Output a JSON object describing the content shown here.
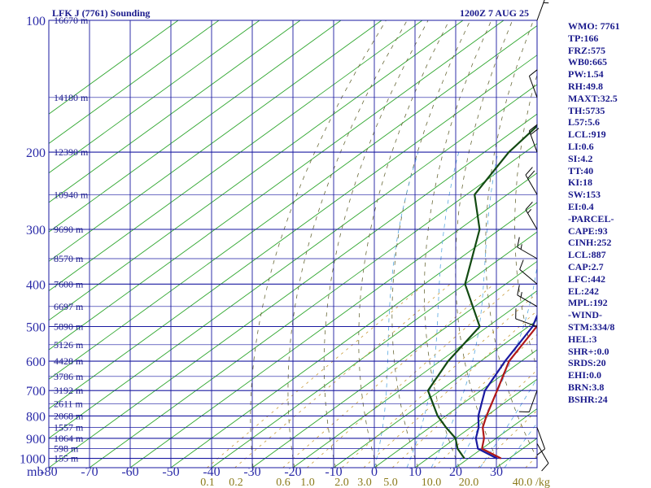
{
  "header": {
    "station": "LFK J (7761) Sounding",
    "time": "1200Z  7 AUG 25"
  },
  "chart_data": {
    "type": "skew-t",
    "pressure_axis": {
      "unit": "mb",
      "levels": [
        100,
        200,
        300,
        400,
        500,
        600,
        700,
        800,
        900,
        1000
      ]
    },
    "temperature_axis": {
      "ticks": [
        -80,
        -70,
        -60,
        -50,
        -40,
        -30,
        -20,
        -10,
        0,
        10,
        20,
        30
      ]
    },
    "mixing_ratio_axis": {
      "unit": "g/kg",
      "labels": [
        "0.1",
        "0.2",
        "0.6",
        "1.0",
        "2.0",
        "3.0",
        "5.0",
        "10.0",
        "20.0",
        "40.0"
      ]
    },
    "height_labels": [
      {
        "p": 100,
        "label": "16670 m"
      },
      {
        "p": 150,
        "label": "14180 m"
      },
      {
        "p": 200,
        "label": "12390 m"
      },
      {
        "p": 250,
        "label": "10940 m"
      },
      {
        "p": 300,
        "label": "9690 m"
      },
      {
        "p": 350,
        "label": "8570 m"
      },
      {
        "p": 400,
        "label": "7600 m"
      },
      {
        "p": 450,
        "label": "6697 m"
      },
      {
        "p": 500,
        "label": "5890 m"
      },
      {
        "p": 550,
        "label": "5126 m"
      },
      {
        "p": 600,
        "label": "4428 m"
      },
      {
        "p": 650,
        "label": "3786 m"
      },
      {
        "p": 700,
        "label": "3192 m"
      },
      {
        "p": 750,
        "label": "2611 m"
      },
      {
        "p": 800,
        "label": "2068 m"
      },
      {
        "p": 850,
        "label": "1557 m"
      },
      {
        "p": 900,
        "label": "1064 m"
      },
      {
        "p": 950,
        "label": "598 m"
      },
      {
        "p": 1000,
        "label": "155 m"
      }
    ],
    "series": [
      {
        "color": "#b01818",
        "points": [
          [
            1000,
            28
          ],
          [
            950,
            20
          ],
          [
            900,
            17
          ],
          [
            850,
            13
          ],
          [
            800,
            10
          ],
          [
            700,
            4
          ],
          [
            600,
            -3
          ],
          [
            500,
            -8
          ],
          [
            400,
            -18
          ],
          [
            300,
            -36
          ],
          [
            250,
            -47
          ],
          [
            200,
            -58
          ],
          [
            150,
            -63
          ],
          [
            100,
            -65
          ]
        ]
      },
      {
        "color": "#1a1aa0",
        "points": [
          [
            1000,
            27
          ],
          [
            950,
            19
          ],
          [
            900,
            15
          ],
          [
            850,
            12
          ],
          [
            800,
            8
          ],
          [
            700,
            1
          ],
          [
            600,
            -4
          ],
          [
            500,
            -9
          ],
          [
            400,
            -19
          ],
          [
            300,
            -38
          ],
          [
            250,
            -49
          ],
          [
            200,
            -62
          ],
          [
            150,
            -74
          ],
          [
            130,
            -78
          ]
        ]
      },
      {
        "color": "#124a12",
        "points": [
          [
            1000,
            19
          ],
          [
            950,
            14
          ],
          [
            900,
            10
          ],
          [
            850,
            4
          ],
          [
            800,
            -2
          ],
          [
            700,
            -13
          ],
          [
            600,
            -18
          ],
          [
            500,
            -22
          ],
          [
            400,
            -40
          ],
          [
            300,
            -55
          ],
          [
            250,
            -68
          ],
          [
            200,
            -74
          ],
          [
            150,
            -78
          ]
        ]
      }
    ],
    "wind_barbs": [
      {
        "p": 100,
        "dir": 20,
        "spd": 15
      },
      {
        "p": 150,
        "dir": 340,
        "spd": 10
      },
      {
        "p": 200,
        "dir": 340,
        "spd": 20
      },
      {
        "p": 250,
        "dir": 330,
        "spd": 20
      },
      {
        "p": 300,
        "dir": 330,
        "spd": 15
      },
      {
        "p": 350,
        "dir": 300,
        "spd": 15
      },
      {
        "p": 400,
        "dir": 310,
        "spd": 10
      },
      {
        "p": 450,
        "dir": 300,
        "spd": 15
      },
      {
        "p": 500,
        "dir": 290,
        "spd": 10
      },
      {
        "p": 700,
        "dir": 200,
        "spd": 10
      },
      {
        "p": 850,
        "dir": 160,
        "spd": 10
      },
      {
        "p": 925,
        "dir": 150,
        "spd": 10
      }
    ],
    "grid": true
  },
  "side_panel": [
    "WMO: 7761",
    "TP:166",
    "FRZ:575",
    "WB0:665",
    "PW:1.54",
    "RH:49.8",
    "MAXT:32.5",
    "TH:5735",
    "L57:5.6",
    "LCL:919",
    "LI:0.6",
    "SI:4.2",
    "TT:40",
    "KI:18",
    "SW:153",
    "EI:0.4",
    "-PARCEL-",
    "CAPE:93",
    "CINH:252",
    "LCL:887",
    "CAP:2.7",
    "LFC:442",
    "EL:242",
    "MPL:192",
    "-WIND-",
    "STM:334/8",
    "HEL:3",
    "SHR+:0.0",
    "SRDS:20",
    "EHI:0.0",
    "BRN:3.8",
    "BSHR:24"
  ]
}
